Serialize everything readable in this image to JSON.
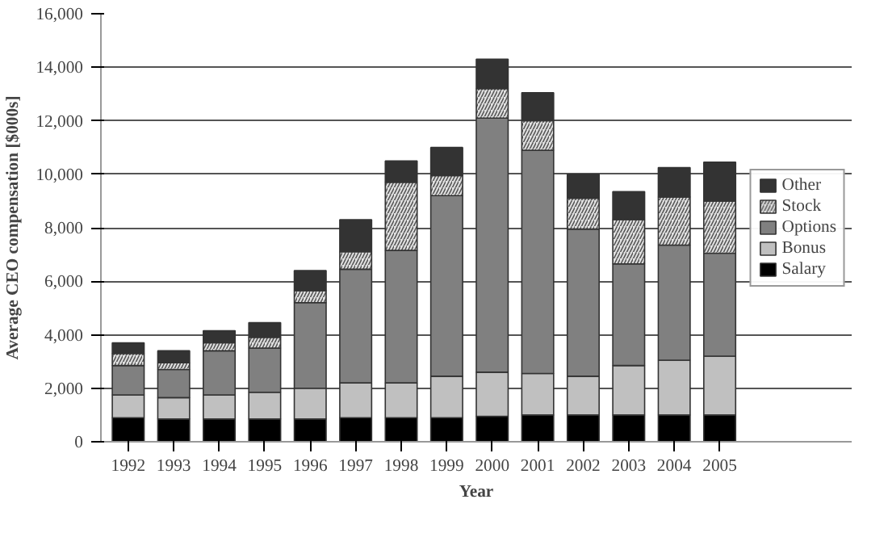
{
  "chart_data": {
    "type": "bar",
    "stacked": true,
    "xlabel": "Year",
    "ylabel": "Average CEO compensation [$000s]",
    "categories": [
      "1992",
      "1993",
      "1994",
      "1995",
      "1996",
      "1997",
      "1998",
      "1999",
      "2000",
      "2001",
      "2002",
      "2003",
      "2004",
      "2005"
    ],
    "series": [
      {
        "name": "Salary",
        "color": "#000000",
        "values": [
          900,
          850,
          850,
          850,
          850,
          900,
          900,
          900,
          950,
          1000,
          1000,
          1000,
          1000,
          1000
        ]
      },
      {
        "name": "Bonus",
        "color": "#c0c0c0",
        "values": [
          850,
          800,
          900,
          1000,
          1150,
          1300,
          1300,
          1550,
          1650,
          1550,
          1450,
          1850,
          2050,
          2200
        ]
      },
      {
        "name": "Options",
        "color": "#808080",
        "values": [
          1100,
          1050,
          1650,
          1650,
          3200,
          4250,
          4950,
          6750,
          9500,
          8350,
          5500,
          3800,
          4300,
          3850
        ]
      },
      {
        "name": "Stock",
        "color": "#e0e0e0",
        "values": [
          450,
          250,
          300,
          400,
          450,
          650,
          2550,
          750,
          1100,
          1100,
          1150,
          1650,
          1800,
          1950
        ]
      },
      {
        "name": "Other",
        "color": "#333333",
        "values": [
          400,
          450,
          450,
          550,
          750,
          1200,
          800,
          1050,
          1100,
          1050,
          900,
          1050,
          1100,
          1450
        ]
      }
    ],
    "ylim": [
      0,
      16000
    ],
    "yticks": [
      0,
      {
        "value": 2000,
        "label": "2,000"
      },
      {
        "value": 4000,
        "label": "4,000"
      },
      {
        "value": 6000,
        "label": "6,000"
      },
      {
        "value": 8000,
        "label": "8,000"
      },
      {
        "value": 10000,
        "label": "10,000"
      },
      {
        "value": 12000,
        "label": "12,000"
      },
      {
        "value": 14000,
        "label": "14,000"
      },
      {
        "value": 16000,
        "label": "16,000"
      }
    ],
    "grid": "y",
    "legend": "right"
  }
}
